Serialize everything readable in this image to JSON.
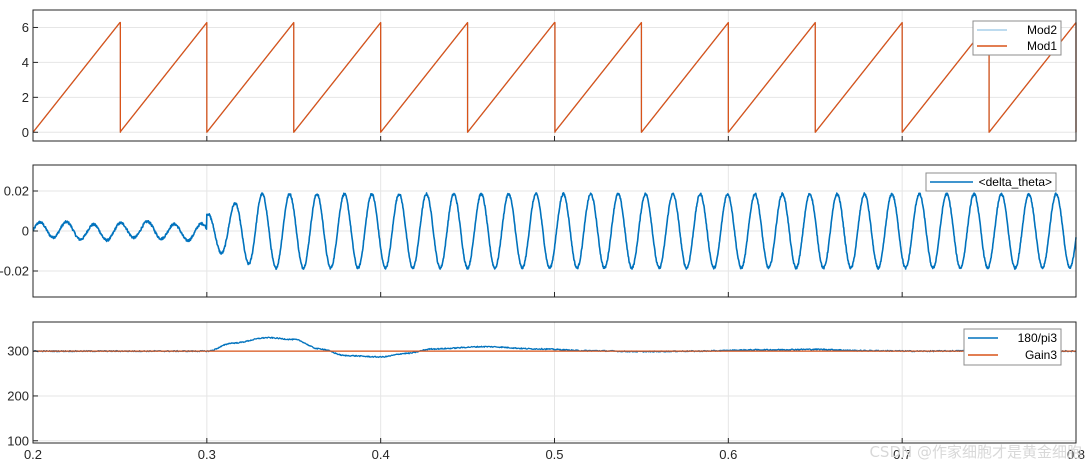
{
  "colors": {
    "blue": "#0072BD",
    "orange": "#D95319",
    "light_blue": "#A7CFEA",
    "grid": "#e6e6e6",
    "axis": "#262626",
    "legend_border": "#8c8c8c"
  },
  "watermark": "CSDN @作家细胞才是黄金细胞",
  "chart_data": [
    {
      "type": "line",
      "x_range": [
        0.2,
        0.8
      ],
      "ylim": [
        -0.5,
        7
      ],
      "yticks": [
        0,
        2,
        4,
        6
      ],
      "ytick_labels": [
        "0",
        "2",
        "4",
        "6"
      ],
      "xticks": [
        0.2,
        0.3,
        0.4,
        0.5,
        0.6,
        0.7,
        0.8
      ],
      "xtick_labels": [],
      "grid": true,
      "legend_position": "top-right",
      "series": [
        {
          "name": "Mod2",
          "color": "#A7CFEA",
          "kind": "sawtooth",
          "amplitude": 6.28,
          "period": 0.05,
          "phase": 0.2,
          "start": 0.2
        },
        {
          "name": "Mod1",
          "color": "#D95319",
          "kind": "sawtooth",
          "amplitude": 6.28,
          "period": 0.05,
          "phase": 0.2,
          "start": 0.2
        }
      ]
    },
    {
      "type": "line",
      "x_range": [
        0.2,
        0.8
      ],
      "ylim": [
        -0.033,
        0.033
      ],
      "yticks": [
        -0.02,
        0,
        0.02
      ],
      "ytick_labels": [
        "-0.02",
        "0",
        "0.02"
      ],
      "xticks": [
        0.2,
        0.3,
        0.4,
        0.5,
        0.6,
        0.7,
        0.8
      ],
      "xtick_labels": [],
      "grid": true,
      "legend_position": "top-right",
      "series": [
        {
          "name": "<delta_theta>",
          "color": "#0072BD",
          "kind": "oscillation",
          "pre_period": 0.0155,
          "pre_amplitude": 0.004,
          "post_period": 0.01575,
          "post_amplitude": 0.0185,
          "switch_time": 0.3,
          "noise": 0.0012
        }
      ]
    },
    {
      "type": "line",
      "x_range": [
        0.2,
        0.8
      ],
      "ylim": [
        95,
        365
      ],
      "yticks": [
        100,
        200,
        300
      ],
      "ytick_labels": [
        "100",
        "200",
        "300"
      ],
      "xticks": [
        0.2,
        0.3,
        0.4,
        0.5,
        0.6,
        0.7,
        0.8
      ],
      "xtick_labels": [
        "0.2",
        "0.3",
        "0.4",
        "0.5",
        "0.6",
        "0.7",
        "0.8"
      ],
      "grid": true,
      "legend_position": "top-right",
      "series": [
        {
          "name": "180/pi3",
          "color": "#0072BD",
          "kind": "transient",
          "base": 300,
          "points": [
            [
              0.2,
              300
            ],
            [
              0.3,
              300
            ],
            [
              0.315,
              318
            ],
            [
              0.335,
              330
            ],
            [
              0.35,
              326
            ],
            [
              0.365,
              305
            ],
            [
              0.38,
              290
            ],
            [
              0.4,
              287
            ],
            [
              0.415,
              295
            ],
            [
              0.43,
              305
            ],
            [
              0.46,
              310
            ],
            [
              0.49,
              305
            ],
            [
              0.52,
              301
            ],
            [
              0.55,
              299
            ],
            [
              0.58,
              300
            ],
            [
              0.62,
              303
            ],
            [
              0.65,
              304
            ],
            [
              0.68,
              301
            ],
            [
              0.71,
              300
            ],
            [
              0.75,
              301
            ],
            [
              0.8,
              300
            ]
          ]
        },
        {
          "name": "Gain3",
          "color": "#D95319",
          "kind": "constant",
          "value": 300
        }
      ]
    }
  ]
}
